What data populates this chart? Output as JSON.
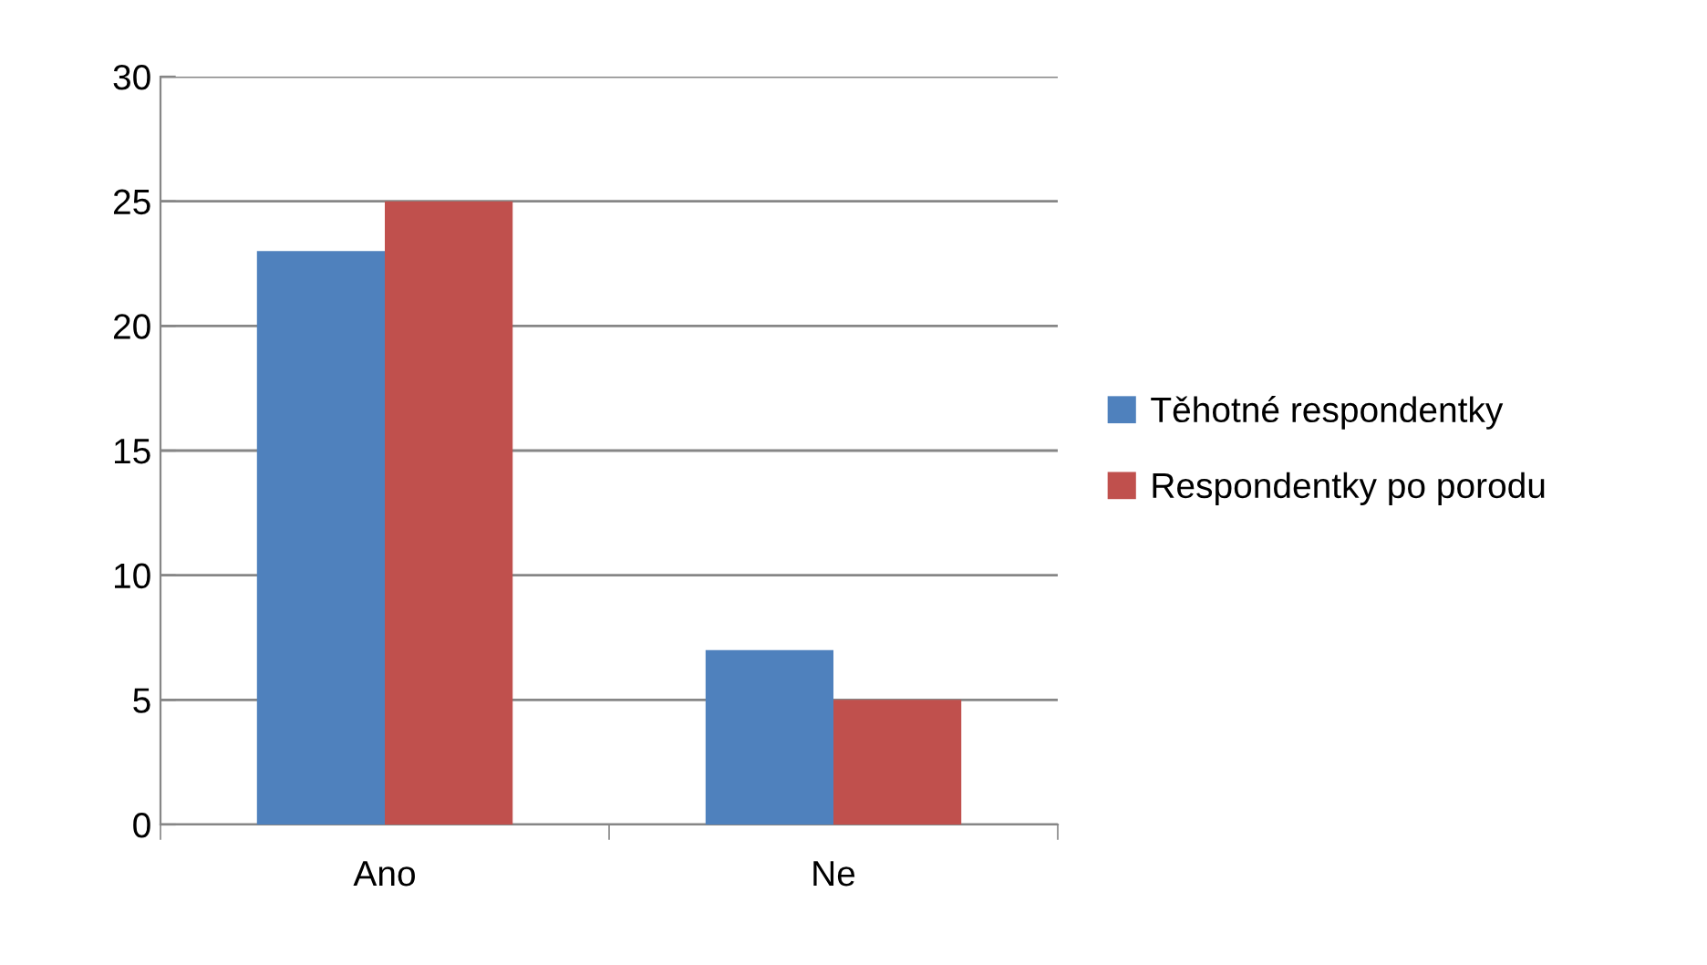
{
  "chart_data": {
    "type": "bar",
    "categories": [
      "Ano",
      "Ne"
    ],
    "series": [
      {
        "name": "Těhotné respondentky",
        "color": "#4f81bd",
        "values": [
          23,
          7
        ]
      },
      {
        "name": "Respondentky po porodu",
        "color": "#c0504d",
        "values": [
          25,
          5
        ]
      }
    ],
    "ylim": [
      0,
      30
    ],
    "yticks": [
      0,
      5,
      10,
      15,
      20,
      25,
      30
    ],
    "grid": "y",
    "legend": "right"
  }
}
